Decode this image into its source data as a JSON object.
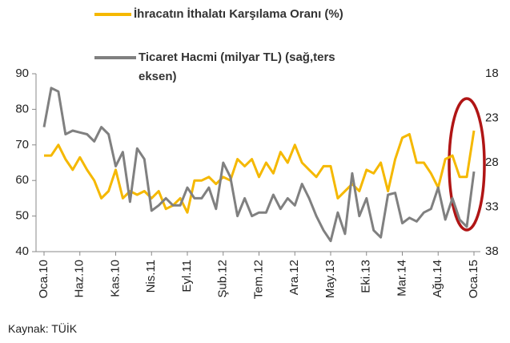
{
  "chart_data": {
    "type": "line",
    "categories": [
      "Oca.10",
      null,
      null,
      null,
      null,
      "Haz.10",
      null,
      null,
      null,
      null,
      "Kas.10",
      null,
      null,
      null,
      null,
      "Nis.11",
      null,
      null,
      null,
      null,
      "Eyl.11",
      null,
      null,
      null,
      null,
      "Şub.12",
      null,
      null,
      null,
      null,
      "Tem.12",
      null,
      null,
      null,
      null,
      "Ara.12",
      null,
      null,
      null,
      null,
      "May.13",
      null,
      null,
      null,
      null,
      "Eki.13",
      null,
      null,
      null,
      null,
      "Mar.14",
      null,
      null,
      null,
      null,
      "Ağu.14",
      null,
      null,
      null,
      null,
      "Oca.15"
    ],
    "series": [
      {
        "name": "İhracatın İthalatı Karşılama Oranı (%)",
        "color": "#f5b800",
        "values": [
          67,
          67,
          70,
          66,
          63,
          66.5,
          63,
          60,
          55,
          57,
          63,
          55,
          57,
          56,
          57,
          55,
          57,
          52,
          53,
          55,
          51,
          60,
          60,
          61,
          59,
          61,
          60,
          66,
          64,
          66,
          61,
          65,
          62,
          68,
          65,
          70,
          65,
          63,
          61,
          64,
          64,
          55,
          57,
          59,
          57,
          63,
          62,
          65,
          57,
          66,
          72,
          73,
          65,
          65,
          62,
          58,
          66,
          67,
          61,
          61,
          74
        ]
      },
      {
        "name": "Ticaret Hacmi (milyar TL) (sağ,ters eksen)",
        "color": "#808080",
        "axis": "y2",
        "values": [
          24,
          19.6,
          20,
          24.8,
          24.4,
          24.6,
          24.8,
          25.6,
          24,
          24.8,
          28.4,
          26.8,
          32.4,
          26.4,
          27.6,
          33.4,
          32.8,
          32,
          32.8,
          32.8,
          30.8,
          32,
          32,
          30.8,
          33.2,
          28,
          29.6,
          34,
          32,
          34,
          33.6,
          33.6,
          31.6,
          33.2,
          32,
          32.8,
          30.4,
          32,
          34,
          35.6,
          36.8,
          33.6,
          36,
          29.2,
          34,
          32,
          35.6,
          36.4,
          31.6,
          31.4,
          34.8,
          34.2,
          34.6,
          33.6,
          33.2,
          30.8,
          34.4,
          32,
          34.4,
          35.2,
          29
        ]
      }
    ],
    "ylim": [
      40,
      90
    ],
    "yticks": [
      40,
      50,
      60,
      70,
      80,
      90
    ],
    "y2lim": [
      38,
      18
    ],
    "y2ticks": [
      18,
      23,
      28,
      33,
      38
    ],
    "source": "Kaynak: TÜİK"
  }
}
